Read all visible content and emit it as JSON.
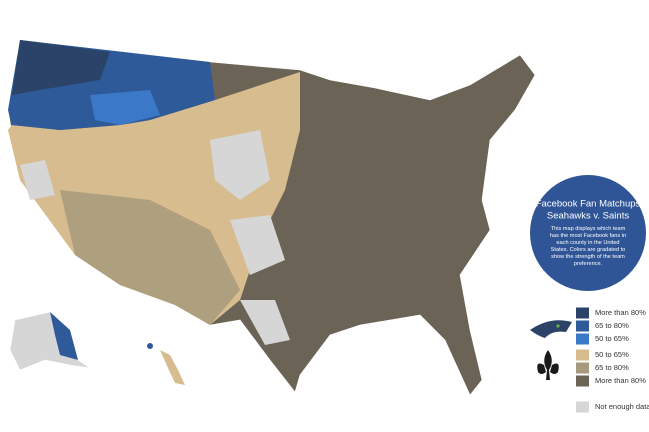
{
  "info": {
    "title": "Facebook Fan Matchups",
    "subtitle": "Seahawks v. Saints",
    "description": "This map displays which team has the most Facebook fans in each county in the United States. Colors are gradated to show the strength of the team preference."
  },
  "legend": {
    "seahawks": [
      {
        "label": "More than 80%",
        "color": "#2b4369"
      },
      {
        "label": "65 to 80%",
        "color": "#2f5a9a"
      },
      {
        "label": "50 to 65%",
        "color": "#3b78c8"
      }
    ],
    "saints": [
      {
        "label": "50 to 65%",
        "color": "#d6bc8f"
      },
      {
        "label": "65 to 80%",
        "color": "#a79a7d"
      },
      {
        "label": "More than 80%",
        "color": "#6b6356"
      }
    ],
    "no_data": {
      "label": "Not enough data",
      "color": "#d6d6d6"
    }
  }
}
